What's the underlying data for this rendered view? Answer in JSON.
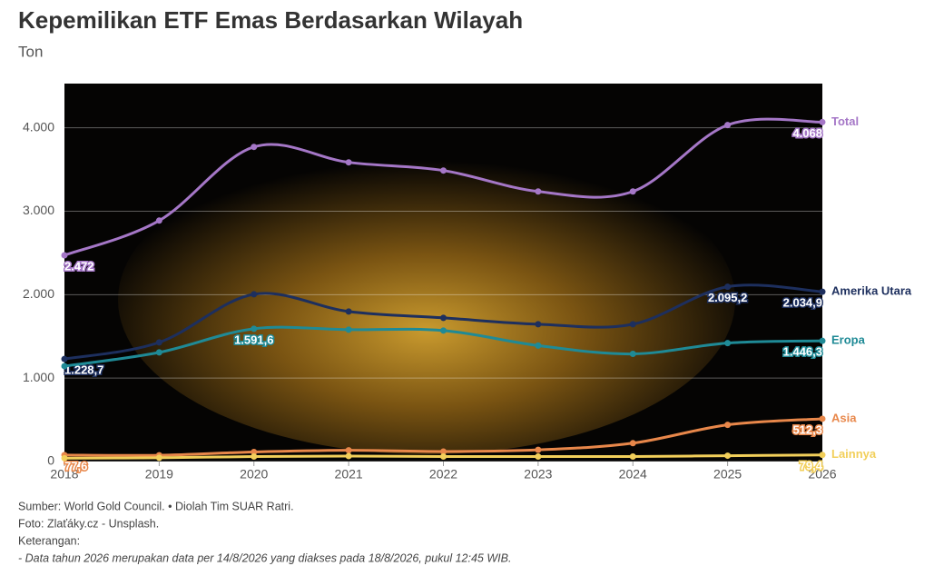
{
  "chart_data": {
    "type": "line",
    "title": "Kepemilikan ETF Emas Berdasarkan Wilayah",
    "subtitle": "Ton",
    "x": [
      2018,
      2019,
      2020,
      2021,
      2022,
      2023,
      2024,
      2025,
      2026
    ],
    "xlim": [
      2018,
      2026
    ],
    "xticks": [
      2018,
      2019,
      2020,
      2021,
      2022,
      2023,
      2024,
      2025,
      2026
    ],
    "ylim": [
      0,
      4530
    ],
    "yticks": [
      0,
      {
        "value": 1000,
        "label": "1.000"
      },
      {
        "value": 2000,
        "label": "2.000"
      },
      {
        "value": 3000,
        "label": "3.000"
      },
      {
        "value": 4000,
        "label": "4.000"
      }
    ],
    "grid": true,
    "series": [
      {
        "name": "Total",
        "color": "#a577c7",
        "values": [
          2472,
          2888,
          3771,
          3586,
          3488,
          3237,
          3237,
          4033,
          4068
        ],
        "value_labels": [
          "2.472",
          null,
          null,
          null,
          null,
          null,
          null,
          null,
          "4.068"
        ]
      },
      {
        "name": "Amerika Utara",
        "color": "#1d2f5e",
        "values": [
          1228.7,
          1428,
          2005,
          1798,
          1722,
          1646,
          1646,
          2095.2,
          2034.9
        ],
        "value_labels": [
          "1.228,7",
          null,
          null,
          null,
          null,
          null,
          null,
          "2.095,2",
          "2.034,9"
        ]
      },
      {
        "name": "Eropa",
        "color": "#1f8a96",
        "values": [
          1144,
          1308,
          1591.6,
          1580,
          1570,
          1390,
          1290,
          1420,
          1446.3
        ],
        "value_labels": [
          null,
          null,
          "1.591,6",
          null,
          null,
          null,
          null,
          null,
          "1.446,3"
        ]
      },
      {
        "name": "Asia",
        "color": "#e8874a",
        "values": [
          77.6,
          75,
          115,
          135,
          120,
          140,
          220,
          440,
          512.3
        ],
        "value_labels": [
          "77,6",
          null,
          null,
          null,
          null,
          null,
          null,
          null,
          "512,3"
        ]
      },
      {
        "name": "Lainnya",
        "color": "#f2cf5a",
        "values": [
          40,
          45,
          60,
          65,
          60,
          60,
          60,
          70,
          79.4
        ],
        "value_labels": [
          null,
          null,
          null,
          null,
          null,
          null,
          null,
          null,
          "79,4"
        ]
      }
    ],
    "source": "Sumber: World Gold Council. • Diolah Tim SUAR Ratri.",
    "photo_credit": "Foto: Zlaťáky.cz - Unsplash.",
    "notes_heading": "Keterangan:",
    "note": "- Data tahun 2026 merupakan data per 14/8/2026 yang diakses pada 18/8/2026, pukul 12:45 WIB."
  }
}
